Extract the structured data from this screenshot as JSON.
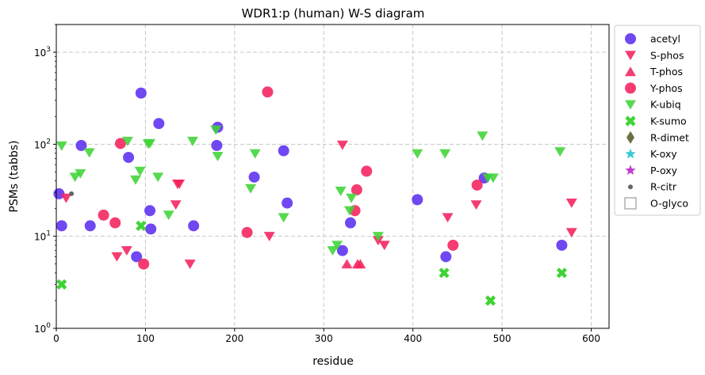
{
  "chart_data": {
    "type": "scatter",
    "title": "WDR1:p (human) W-S diagram",
    "xlabel": "residue",
    "ylabel": "PSMs (tabbs)",
    "xlim": [
      0,
      620
    ],
    "ylim": [
      1,
      2000
    ],
    "yscale": "log",
    "grid": true,
    "legend_position": "outside-right",
    "x_ticks": [
      0,
      100,
      200,
      300,
      400,
      500,
      600
    ],
    "y_ticks": [
      {
        "value": 1,
        "base": "10",
        "exp": "0"
      },
      {
        "value": 10,
        "base": "10",
        "exp": "1"
      },
      {
        "value": 100,
        "base": "10",
        "exp": "2"
      },
      {
        "value": 1000,
        "base": "10",
        "exp": "3"
      }
    ],
    "series": [
      {
        "name": "acetyl",
        "marker": "circle",
        "color": "#5b2ff0",
        "points": [
          [
            3,
            29
          ],
          [
            6,
            13
          ],
          [
            28,
            97
          ],
          [
            38,
            13
          ],
          [
            81,
            72
          ],
          [
            90,
            6
          ],
          [
            95,
            360
          ],
          [
            105,
            19
          ],
          [
            106,
            12
          ],
          [
            115,
            168
          ],
          [
            154,
            13
          ],
          [
            180,
            97
          ],
          [
            181,
            153
          ],
          [
            222,
            44
          ],
          [
            255,
            85
          ],
          [
            259,
            23
          ],
          [
            321,
            7
          ],
          [
            330,
            14
          ],
          [
            405,
            25
          ],
          [
            437,
            6
          ],
          [
            480,
            43
          ],
          [
            567,
            8
          ]
        ]
      },
      {
        "name": "S-phos",
        "marker": "triangle-down",
        "color": "#f4215c",
        "points": [
          [
            11,
            26
          ],
          [
            68,
            6
          ],
          [
            79,
            7
          ],
          [
            134,
            22
          ],
          [
            136,
            37
          ],
          [
            138,
            37
          ],
          [
            150,
            5
          ],
          [
            239,
            10
          ],
          [
            321,
            98
          ],
          [
            439,
            16
          ],
          [
            471,
            22
          ],
          [
            578,
            23
          ],
          [
            578,
            11
          ],
          [
            361,
            9
          ],
          [
            368,
            8
          ]
        ]
      },
      {
        "name": "T-phos",
        "marker": "triangle-up",
        "color": "#f4215c",
        "points": [
          [
            326,
            5
          ],
          [
            338,
            5
          ],
          [
            341,
            5
          ]
        ]
      },
      {
        "name": "Y-phos",
        "marker": "circle",
        "color": "#f4215c",
        "points": [
          [
            72,
            102
          ],
          [
            53,
            17
          ],
          [
            66,
            14
          ],
          [
            98,
            5
          ],
          [
            214,
            11
          ],
          [
            237,
            370
          ],
          [
            335,
            19
          ],
          [
            337,
            32
          ],
          [
            348,
            51
          ],
          [
            445,
            8
          ],
          [
            472,
            36
          ]
        ]
      },
      {
        "name": "K-ubiq",
        "marker": "triangle-down",
        "color": "#3fd436",
        "points": [
          [
            6,
            96
          ],
          [
            21,
            44
          ],
          [
            27,
            48
          ],
          [
            37,
            81
          ],
          [
            80,
            108
          ],
          [
            89,
            41
          ],
          [
            94,
            51
          ],
          [
            103,
            101
          ],
          [
            105,
            102
          ],
          [
            114,
            44
          ],
          [
            126,
            17
          ],
          [
            153,
            108
          ],
          [
            179,
            143
          ],
          [
            181,
            74
          ],
          [
            218,
            33
          ],
          [
            223,
            79
          ],
          [
            255,
            16
          ],
          [
            310,
            7
          ],
          [
            315,
            8
          ],
          [
            319,
            31
          ],
          [
            329,
            19
          ],
          [
            331,
            26
          ],
          [
            361,
            10
          ],
          [
            405,
            79
          ],
          [
            436,
            79
          ],
          [
            478,
            123
          ],
          [
            484,
            43
          ],
          [
            490,
            43
          ],
          [
            565,
            83
          ]
        ]
      },
      {
        "name": "K-sumo",
        "marker": "x",
        "color": "#3fd436",
        "points": [
          [
            6,
            3
          ],
          [
            95,
            13
          ],
          [
            435,
            4
          ],
          [
            487,
            2
          ],
          [
            567,
            4
          ]
        ]
      },
      {
        "name": "R-dimet",
        "marker": "diamond",
        "color": "#6e6e44",
        "points": []
      },
      {
        "name": "K-oxy",
        "marker": "star",
        "color": "#3cc9d6",
        "points": []
      },
      {
        "name": "P-oxy",
        "marker": "star",
        "color": "#c13ccf",
        "points": []
      },
      {
        "name": "R-citr",
        "marker": "small-circle",
        "color": "#666666",
        "points": [
          [
            17,
            29
          ]
        ]
      },
      {
        "name": "O-glyco",
        "marker": "square-open",
        "color": "#888888",
        "points": []
      }
    ]
  }
}
